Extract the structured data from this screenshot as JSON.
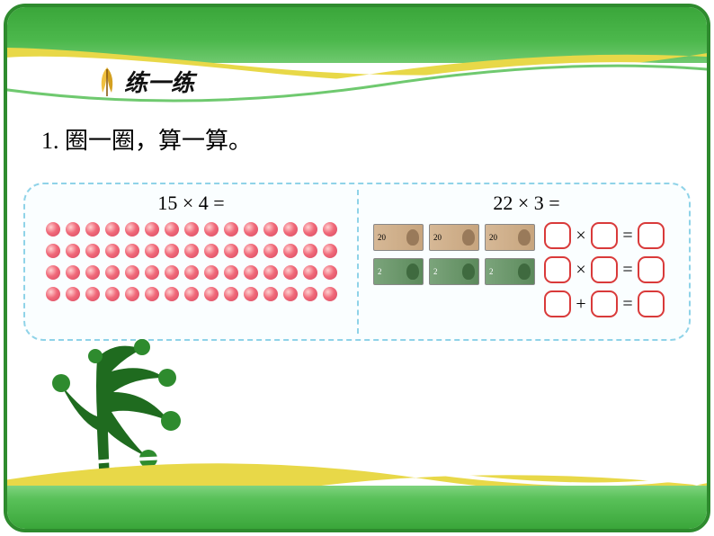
{
  "header": {
    "title": "练一练"
  },
  "instruction": "1. 圈一圈，算一算。",
  "exercise": {
    "left": {
      "equation": "15 × 4 =",
      "dots": {
        "rows": 4,
        "cols": 15,
        "color": "#e85a6e"
      }
    },
    "right": {
      "equation": "22 × 3 =",
      "bills": {
        "row1": {
          "count": 3,
          "value": "20",
          "bg": "#c7a57e"
        },
        "row2": {
          "count": 3,
          "value": "2",
          "bg": "#5c8a5c"
        }
      },
      "blank_equations": [
        {
          "op1": "×",
          "op2": "="
        },
        {
          "op1": "×",
          "op2": "="
        },
        {
          "op1": "+",
          "op2": "="
        }
      ]
    }
  },
  "colors": {
    "frame_green": "#2e8b2e",
    "dash_blue": "#8fd3e8",
    "slot_red": "#d93a3a",
    "ribbon_yellow": "#e8d848"
  }
}
